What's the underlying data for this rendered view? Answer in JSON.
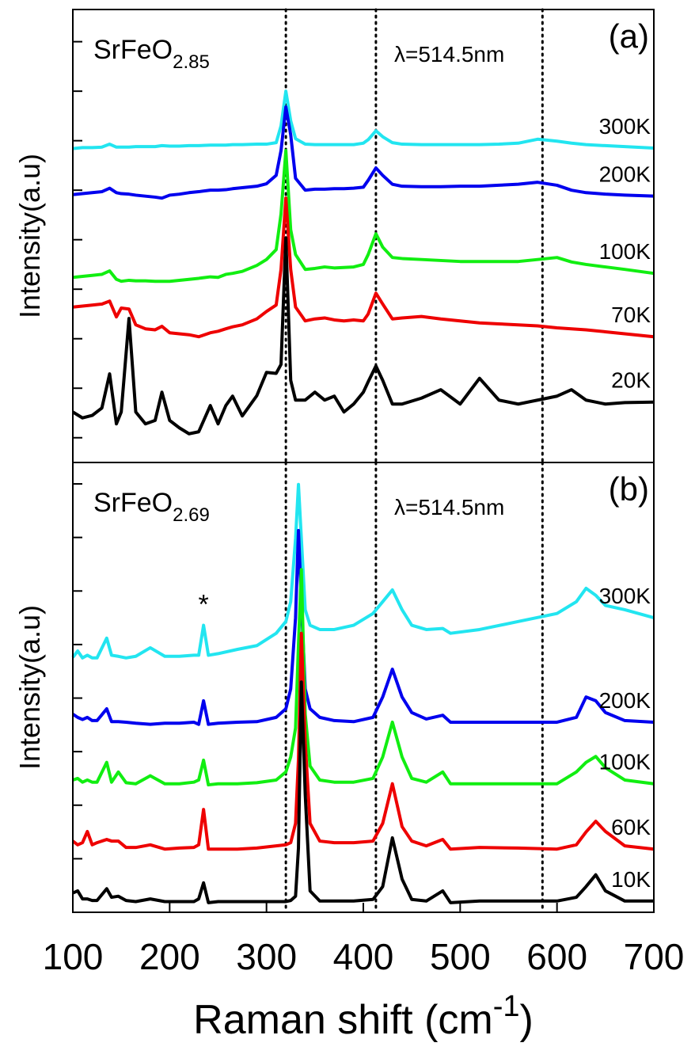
{
  "chart_data": [
    {
      "type": "line",
      "panel_label": "(a)",
      "formula": "SrFeO",
      "formula_subscript": "2.85",
      "wavelength_label": "λ=514.5nm",
      "y_label": "Intensity(a.u)",
      "xlim": [
        100,
        700
      ],
      "ylim": [
        -0.5,
        8.65
      ],
      "yticks": [
        0,
        1,
        2,
        3,
        4,
        5,
        6,
        7,
        8
      ],
      "vlines": [
        320,
        413,
        585
      ],
      "x": [
        100,
        110,
        120,
        130,
        138,
        145,
        150,
        158,
        165,
        175,
        185,
        192,
        200,
        210,
        220,
        230,
        242,
        250,
        258,
        265,
        275,
        290,
        300,
        310,
        315,
        320,
        325,
        330,
        340,
        350,
        360,
        370,
        380,
        390,
        400,
        405,
        413,
        420,
        430,
        440,
        460,
        480,
        500,
        520,
        540,
        560,
        580,
        600,
        615,
        630,
        650,
        670,
        700
      ],
      "series": [
        {
          "name": "300K",
          "color": "#22e5f0",
          "values": [
            5.84,
            5.86,
            5.86,
            5.87,
            5.93,
            5.87,
            5.87,
            5.87,
            5.88,
            5.88,
            5.88,
            5.9,
            5.89,
            5.89,
            5.9,
            5.9,
            5.91,
            5.91,
            5.91,
            5.92,
            5.92,
            5.93,
            5.93,
            5.96,
            6.3,
            7.0,
            6.4,
            6.04,
            5.93,
            5.92,
            5.92,
            5.92,
            5.92,
            5.92,
            5.95,
            6.02,
            6.2,
            6.08,
            5.96,
            5.93,
            5.92,
            5.92,
            5.92,
            5.92,
            5.93,
            5.95,
            6.03,
            5.99,
            5.95,
            5.92,
            5.9,
            5.88,
            5.85
          ]
        },
        {
          "name": "200K",
          "color": "#0000ee",
          "values": [
            4.91,
            4.93,
            4.95,
            4.97,
            5.04,
            4.95,
            4.93,
            4.92,
            4.9,
            4.88,
            4.86,
            4.84,
            4.9,
            4.92,
            4.95,
            4.97,
            5.0,
            5.0,
            5.01,
            5.03,
            5.05,
            5.08,
            5.13,
            5.3,
            5.8,
            6.68,
            6.12,
            5.24,
            5.0,
            5.02,
            5.02,
            5.03,
            5.03,
            5.04,
            5.06,
            5.2,
            5.45,
            5.3,
            5.12,
            5.08,
            5.07,
            5.07,
            5.08,
            5.08,
            5.1,
            5.12,
            5.16,
            5.1,
            5.0,
            4.95,
            4.92,
            4.9,
            4.88
          ]
        },
        {
          "name": "100K",
          "color": "#11ee11",
          "values": [
            3.24,
            3.26,
            3.28,
            3.3,
            3.37,
            3.2,
            3.16,
            3.18,
            3.17,
            3.17,
            3.16,
            3.16,
            3.16,
            3.18,
            3.2,
            3.22,
            3.25,
            3.24,
            3.3,
            3.32,
            3.36,
            3.48,
            3.6,
            3.8,
            4.52,
            5.8,
            4.2,
            3.7,
            3.4,
            3.42,
            3.45,
            3.43,
            3.44,
            3.45,
            3.5,
            3.7,
            4.12,
            3.85,
            3.64,
            3.62,
            3.6,
            3.58,
            3.56,
            3.56,
            3.56,
            3.56,
            3.6,
            3.64,
            3.55,
            3.5,
            3.45,
            3.4,
            3.32
          ]
        },
        {
          "name": "70K",
          "color": "#ee0000",
          "values": [
            2.64,
            2.66,
            2.68,
            2.7,
            2.76,
            2.44,
            2.62,
            2.6,
            2.28,
            2.2,
            2.18,
            2.25,
            2.12,
            2.1,
            2.08,
            2.04,
            2.12,
            2.15,
            2.2,
            2.24,
            2.28,
            2.4,
            2.55,
            2.68,
            3.4,
            4.84,
            3.4,
            2.64,
            2.36,
            2.4,
            2.42,
            2.38,
            2.36,
            2.38,
            2.36,
            2.5,
            2.92,
            2.7,
            2.4,
            2.42,
            2.45,
            2.4,
            2.36,
            2.32,
            2.3,
            2.28,
            2.26,
            2.22,
            2.2,
            2.18,
            2.14,
            2.1,
            2.04
          ]
        },
        {
          "name": "20K",
          "color": "#000000",
          "values": [
            0.52,
            0.4,
            0.45,
            0.6,
            1.29,
            0.28,
            0.52,
            2.41,
            0.52,
            0.28,
            0.35,
            0.92,
            0.35,
            0.2,
            0.08,
            0.12,
            0.65,
            0.28,
            0.65,
            0.84,
            0.44,
            0.85,
            1.32,
            1.3,
            1.48,
            4.04,
            1.16,
            0.76,
            0.76,
            0.92,
            0.76,
            0.84,
            0.52,
            0.68,
            0.92,
            1.13,
            1.45,
            1.16,
            0.68,
            0.68,
            0.8,
            0.97,
            0.68,
            1.2,
            0.76,
            0.68,
            0.76,
            0.84,
            0.97,
            0.76,
            0.68,
            0.71,
            0.72
          ]
        }
      ]
    },
    {
      "type": "line",
      "panel_label": "(b)",
      "formula": "SrFeO",
      "formula_subscript": "2.69",
      "wavelength_label": "λ=514.5nm",
      "y_label": "Intensity(a.u)",
      "x_label": "Raman shift (cm",
      "x_label_superscript": "-1",
      "x_label_end": ")",
      "xlim": [
        100,
        700
      ],
      "xticks": [
        100,
        200,
        300,
        400,
        500,
        600,
        700
      ],
      "ylim": [
        -1,
        7.4
      ],
      "yticks": [
        0,
        1,
        2,
        3,
        4,
        5,
        6,
        7
      ],
      "vlines": [
        320,
        413,
        585
      ],
      "annotations": [
        {
          "text": "*",
          "x": 235,
          "y": 4.58
        }
      ],
      "x": [
        100,
        105,
        110,
        115,
        120,
        125,
        135,
        140,
        147,
        155,
        165,
        180,
        195,
        210,
        225,
        230,
        235,
        240,
        250,
        270,
        290,
        310,
        320,
        325,
        330,
        333,
        336,
        340,
        345,
        355,
        370,
        390,
        410,
        420,
        430,
        440,
        450,
        465,
        482,
        490,
        520,
        560,
        600,
        620,
        630,
        640,
        650,
        670,
        700
      ],
      "series": [
        {
          "name": "300K",
          "color": "#22e5f0",
          "values": [
            3.76,
            3.88,
            3.75,
            3.8,
            3.75,
            3.75,
            4.12,
            3.8,
            3.78,
            3.75,
            3.78,
            3.94,
            3.78,
            3.78,
            3.8,
            3.8,
            4.36,
            3.8,
            3.83,
            3.91,
            3.98,
            4.21,
            4.43,
            4.8,
            5.98,
            6.99,
            5.98,
            4.65,
            4.36,
            4.28,
            4.28,
            4.36,
            4.58,
            4.8,
            5.02,
            4.65,
            4.36,
            4.28,
            4.3,
            4.21,
            4.28,
            4.43,
            4.58,
            4.8,
            5.05,
            4.92,
            4.73,
            4.65,
            4.5
          ]
        },
        {
          "name": "200K",
          "color": "#0000ee",
          "values": [
            2.7,
            2.64,
            2.6,
            2.64,
            2.58,
            2.58,
            2.8,
            2.56,
            2.56,
            2.55,
            2.53,
            2.51,
            2.53,
            2.53,
            2.55,
            2.51,
            2.95,
            2.51,
            2.53,
            2.55,
            2.56,
            2.64,
            2.8,
            3.17,
            4.5,
            6.13,
            4.8,
            3.17,
            2.8,
            2.64,
            2.58,
            2.56,
            2.64,
            3.02,
            3.54,
            3.02,
            2.73,
            2.61,
            2.68,
            2.55,
            2.55,
            2.55,
            2.55,
            2.64,
            3.02,
            2.95,
            2.73,
            2.58,
            2.55
          ]
        },
        {
          "name": "100K",
          "color": "#11ee11",
          "values": [
            1.47,
            1.5,
            1.43,
            1.47,
            1.43,
            1.43,
            1.8,
            1.43,
            1.62,
            1.42,
            1.4,
            1.55,
            1.4,
            1.4,
            1.43,
            1.47,
            1.84,
            1.38,
            1.4,
            1.4,
            1.42,
            1.47,
            1.62,
            1.9,
            2.44,
            4.0,
            5.4,
            2.7,
            1.73,
            1.47,
            1.43,
            1.43,
            1.5,
            1.9,
            2.55,
            1.9,
            1.5,
            1.43,
            1.62,
            1.4,
            1.4,
            1.4,
            1.4,
            1.62,
            1.8,
            1.91,
            1.7,
            1.47,
            1.4
          ]
        },
        {
          "name": "60K",
          "color": "#ee0000",
          "values": [
            0.33,
            0.26,
            0.3,
            0.51,
            0.26,
            0.3,
            0.36,
            0.33,
            0.33,
            0.21,
            0.21,
            0.26,
            0.18,
            0.2,
            0.21,
            0.26,
            0.92,
            0.18,
            0.18,
            0.18,
            0.2,
            0.24,
            0.26,
            0.3,
            0.66,
            1.86,
            4.21,
            2.16,
            0.66,
            0.33,
            0.3,
            0.3,
            0.33,
            0.66,
            1.4,
            0.6,
            0.33,
            0.24,
            0.36,
            0.18,
            0.21,
            0.2,
            0.18,
            0.26,
            0.5,
            0.7,
            0.51,
            0.24,
            0.18
          ]
        },
        {
          "name": "10K",
          "color": "#000000",
          "values": [
            -0.64,
            -0.6,
            -0.75,
            -0.75,
            -0.78,
            -0.78,
            -0.56,
            -0.72,
            -0.7,
            -0.78,
            -0.8,
            -0.75,
            -0.8,
            -0.8,
            -0.8,
            -0.75,
            -0.45,
            -0.82,
            -0.8,
            -0.8,
            -0.8,
            -0.8,
            -0.8,
            -0.78,
            -0.7,
            0.2,
            3.3,
            1.2,
            -0.6,
            -0.79,
            -0.79,
            -0.79,
            -0.76,
            -0.52,
            0.39,
            -0.38,
            -0.76,
            -0.79,
            -0.6,
            -0.82,
            -0.79,
            -0.79,
            -0.79,
            -0.72,
            -0.52,
            -0.3,
            -0.6,
            -0.79,
            -0.79
          ]
        }
      ]
    }
  ]
}
